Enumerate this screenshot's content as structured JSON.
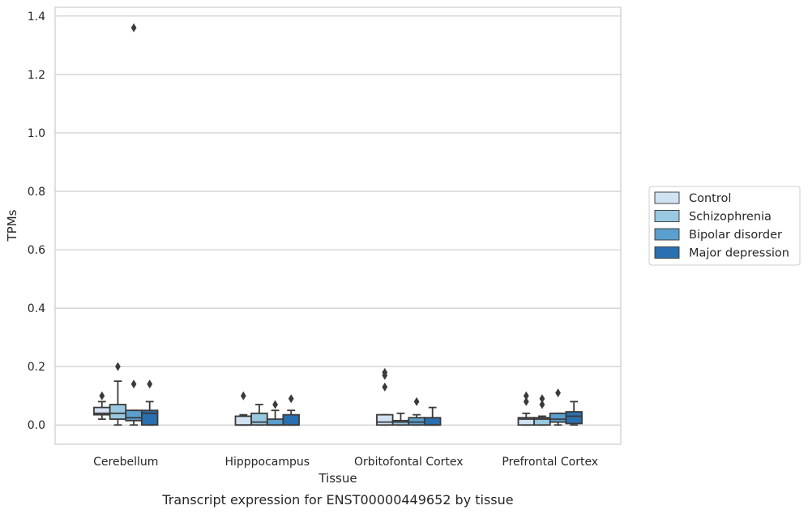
{
  "chart_data": {
    "type": "box",
    "title": "",
    "caption": "Transcript expression for ENST00000449652 by tissue",
    "xlabel": "Tissue",
    "ylabel": "TPMs",
    "ylim": [
      -0.066,
      1.43
    ],
    "yticks": [
      "0.0",
      "0.2",
      "0.4",
      "0.6",
      "0.8",
      "1.0",
      "1.2",
      "1.4"
    ],
    "ytick_values": [
      0,
      0.2,
      0.4,
      0.6,
      0.8,
      1.0,
      1.2,
      1.4
    ],
    "grid": true,
    "legend_position": "right",
    "categories": [
      "Cerebellum",
      "Hipppocampus",
      "Orbitofontal Cortex",
      "Prefrontal Cortex"
    ],
    "series": [
      {
        "name": "Control",
        "color": "#d1e2f2",
        "boxes": [
          {
            "whislo": 0.02,
            "q1": 0.035,
            "med": 0.04,
            "q3": 0.06,
            "whishi": 0.08,
            "fliers": [
              0.1
            ]
          },
          {
            "whislo": 0.0,
            "q1": 0.0,
            "med": 0.0,
            "q3": 0.03,
            "whishi": 0.035,
            "fliers": [
              0.1
            ]
          },
          {
            "whislo": 0.0,
            "q1": 0.0,
            "med": 0.01,
            "q3": 0.035,
            "whishi": 0.035,
            "fliers": [
              0.13,
              0.17,
              0.18
            ]
          },
          {
            "whislo": 0.0,
            "q1": 0.0,
            "med": 0.02,
            "q3": 0.025,
            "whishi": 0.04,
            "fliers": [
              0.08,
              0.1
            ]
          }
        ]
      },
      {
        "name": "Schizophrenia",
        "color": "#9ac8e0",
        "boxes": [
          {
            "whislo": 0.0,
            "q1": 0.02,
            "med": 0.04,
            "q3": 0.07,
            "whishi": 0.15,
            "fliers": [
              0.2
            ]
          },
          {
            "whislo": 0.0,
            "q1": 0.0,
            "med": 0.01,
            "q3": 0.04,
            "whishi": 0.07,
            "fliers": []
          },
          {
            "whislo": 0.0,
            "q1": 0.0,
            "med": 0.01,
            "q3": 0.015,
            "whishi": 0.04,
            "fliers": []
          },
          {
            "whislo": 0.0,
            "q1": 0.0,
            "med": 0.02,
            "q3": 0.025,
            "whishi": 0.03,
            "fliers": [
              0.07,
              0.09
            ]
          }
        ]
      },
      {
        "name": "Bipolar disorder",
        "color": "#5a9fcd",
        "boxes": [
          {
            "whislo": 0.0,
            "q1": 0.015,
            "med": 0.025,
            "q3": 0.05,
            "whishi": 0.05,
            "fliers": [
              0.14,
              1.36
            ]
          },
          {
            "whislo": 0.0,
            "q1": 0.0,
            "med": 0.0,
            "q3": 0.02,
            "whishi": 0.05,
            "fliers": [
              0.07
            ]
          },
          {
            "whislo": 0.0,
            "q1": 0.0,
            "med": 0.01,
            "q3": 0.025,
            "whishi": 0.035,
            "fliers": [
              0.08
            ]
          },
          {
            "whislo": 0.0,
            "q1": 0.01,
            "med": 0.02,
            "q3": 0.04,
            "whishi": 0.04,
            "fliers": [
              0.11
            ]
          }
        ]
      },
      {
        "name": "Major depression",
        "color": "#2a6fb0",
        "boxes": [
          {
            "whislo": 0.0,
            "q1": 0.0,
            "med": 0.04,
            "q3": 0.05,
            "whishi": 0.08,
            "fliers": [
              0.14
            ]
          },
          {
            "whislo": 0.0,
            "q1": 0.0,
            "med": 0.0,
            "q3": 0.035,
            "whishi": 0.05,
            "fliers": [
              0.09
            ]
          },
          {
            "whislo": 0.0,
            "q1": 0.0,
            "med": 0.0,
            "q3": 0.025,
            "whishi": 0.06,
            "fliers": []
          },
          {
            "whislo": 0.0,
            "q1": 0.005,
            "med": 0.03,
            "q3": 0.045,
            "whishi": 0.08,
            "fliers": []
          }
        ]
      }
    ]
  }
}
